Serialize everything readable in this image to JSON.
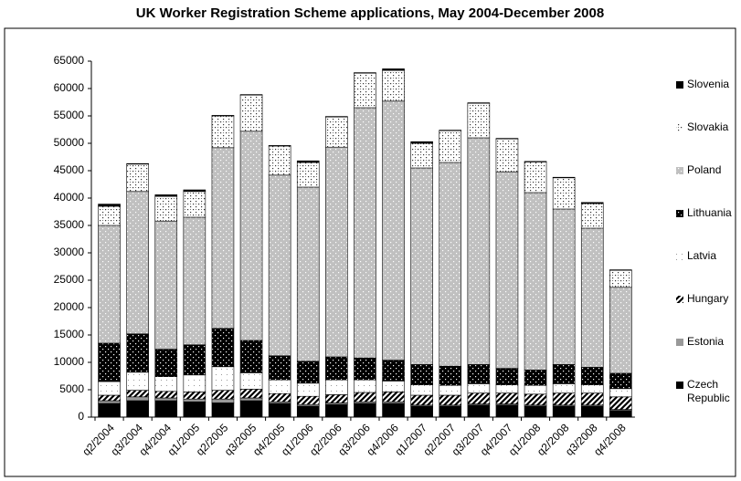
{
  "chart_data": {
    "type": "stacked-bar",
    "title": "UK Worker Registration Scheme applications, May 2004-December 2008",
    "categories": [
      "q2/2004",
      "q3/2004",
      "q4/2004",
      "q1/2005",
      "q2/2005",
      "q3/2005",
      "q4/2005",
      "q1/2006",
      "q2/2006",
      "q3/2006",
      "q4/2006",
      "q1/2007",
      "q2/2007",
      "q3/2007",
      "q4/2007",
      "q1/2008",
      "q2/2008",
      "q3/2008",
      "q4/2008"
    ],
    "series": [
      {
        "name": "Czech Republic",
        "color": "#000000",
        "pattern": "solid",
        "values": [
          2500,
          3000,
          3000,
          2800,
          2600,
          3000,
          2500,
          2000,
          2300,
          2500,
          2500,
          2000,
          2000,
          2200,
          2200,
          2000,
          2000,
          2000,
          1200
        ]
      },
      {
        "name": "Estonia",
        "color": "#999999",
        "pattern": "solid",
        "values": [
          500,
          700,
          500,
          500,
          700,
          500,
          300,
          300,
          300,
          300,
          300,
          200,
          200,
          200,
          200,
          200,
          200,
          200,
          200
        ]
      },
      {
        "name": "Hungary",
        "color": "#000000",
        "pattern": "stripes",
        "values": [
          1000,
          1200,
          1200,
          1300,
          1600,
          1600,
          1500,
          1500,
          1500,
          1700,
          1800,
          1800,
          1800,
          2000,
          2000,
          2000,
          2200,
          2200,
          2300
        ]
      },
      {
        "name": "Latvia",
        "color": "#ffffff",
        "pattern": "sparse-dots",
        "values": [
          2500,
          3300,
          2700,
          3100,
          4300,
          3000,
          2500,
          2400,
          2700,
          2300,
          2000,
          1900,
          1800,
          1700,
          1500,
          1600,
          1700,
          1500,
          1500
        ]
      },
      {
        "name": "Lithuania",
        "color": "#000000",
        "pattern": "light-dots",
        "values": [
          7000,
          7000,
          5000,
          5500,
          7000,
          5900,
          4400,
          4000,
          4200,
          4000,
          3800,
          3700,
          3500,
          3500,
          3000,
          2800,
          3500,
          3200,
          2800
        ]
      },
      {
        "name": "Poland",
        "color": "#c0c0c0",
        "pattern": "light-dots",
        "values": [
          21500,
          26000,
          23400,
          23300,
          33000,
          38200,
          33000,
          31800,
          38300,
          45700,
          47300,
          35900,
          37200,
          41400,
          35900,
          32400,
          28400,
          25400,
          15700
        ]
      },
      {
        "name": "Slovakia",
        "color": "#ffffff",
        "pattern": "dark-dots",
        "values": [
          3500,
          5000,
          4500,
          4700,
          5800,
          6600,
          5300,
          4500,
          5500,
          6300,
          5600,
          4500,
          5800,
          6300,
          6000,
          5600,
          5700,
          4500,
          3100
        ]
      },
      {
        "name": "Slovenia",
        "color": "#000000",
        "pattern": "solid",
        "values": [
          400,
          100,
          300,
          300,
          100,
          100,
          100,
          300,
          100,
          100,
          300,
          300,
          100,
          100,
          100,
          100,
          100,
          200,
          100
        ]
      }
    ],
    "ylim": [
      0,
      65000
    ],
    "yticks": [
      0,
      5000,
      10000,
      15000,
      20000,
      25000,
      30000,
      35000,
      40000,
      45000,
      50000,
      55000,
      60000,
      65000
    ]
  }
}
